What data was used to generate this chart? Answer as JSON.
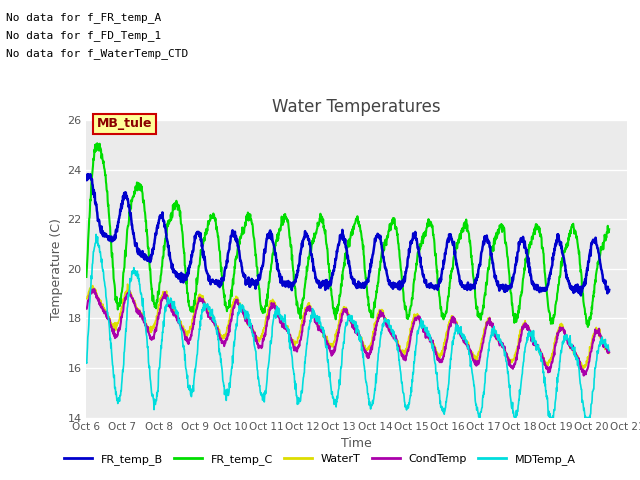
{
  "title": "Water Temperatures",
  "xlabel": "Time",
  "ylabel": "Temperature (C)",
  "ylim": [
    14,
    26
  ],
  "xlim": [
    0,
    14.5
  ],
  "xtick_labels": [
    "Oct 6",
    "Oct 7",
    "Oct 8",
    "Oct 9",
    "Oct 10",
    "Oct 11",
    "Oct 12",
    "Oct 13",
    "Oct 14",
    "Oct 15",
    "Oct 16",
    "Oct 17",
    "Oct 18",
    "Oct 19",
    "Oct 20",
    "Oct 21"
  ],
  "no_data_texts": [
    "No data for f_FR_temp_A",
    "No data for f_FD_Temp_1",
    "No data for f_WaterTemp_CTD"
  ],
  "series": {
    "FR_temp_B": {
      "color": "#0000cc",
      "linewidth": 1.8
    },
    "FR_temp_C": {
      "color": "#00dd00",
      "linewidth": 1.5
    },
    "WaterT": {
      "color": "#dddd00",
      "linewidth": 1.2
    },
    "CondTemp": {
      "color": "#aa00aa",
      "linewidth": 1.5
    },
    "MDTemp_A": {
      "color": "#00dddd",
      "linewidth": 1.2
    }
  },
  "legend_labels": [
    "FR_temp_B",
    "FR_temp_C",
    "WaterT",
    "CondTemp",
    "MDTemp_A"
  ],
  "legend_colors": [
    "#0000cc",
    "#00dd00",
    "#dddd00",
    "#aa00aa",
    "#00dddd"
  ],
  "fig_bg": "#ffffff",
  "axes_bg": "#ebebeb",
  "grid_color": "#ffffff"
}
